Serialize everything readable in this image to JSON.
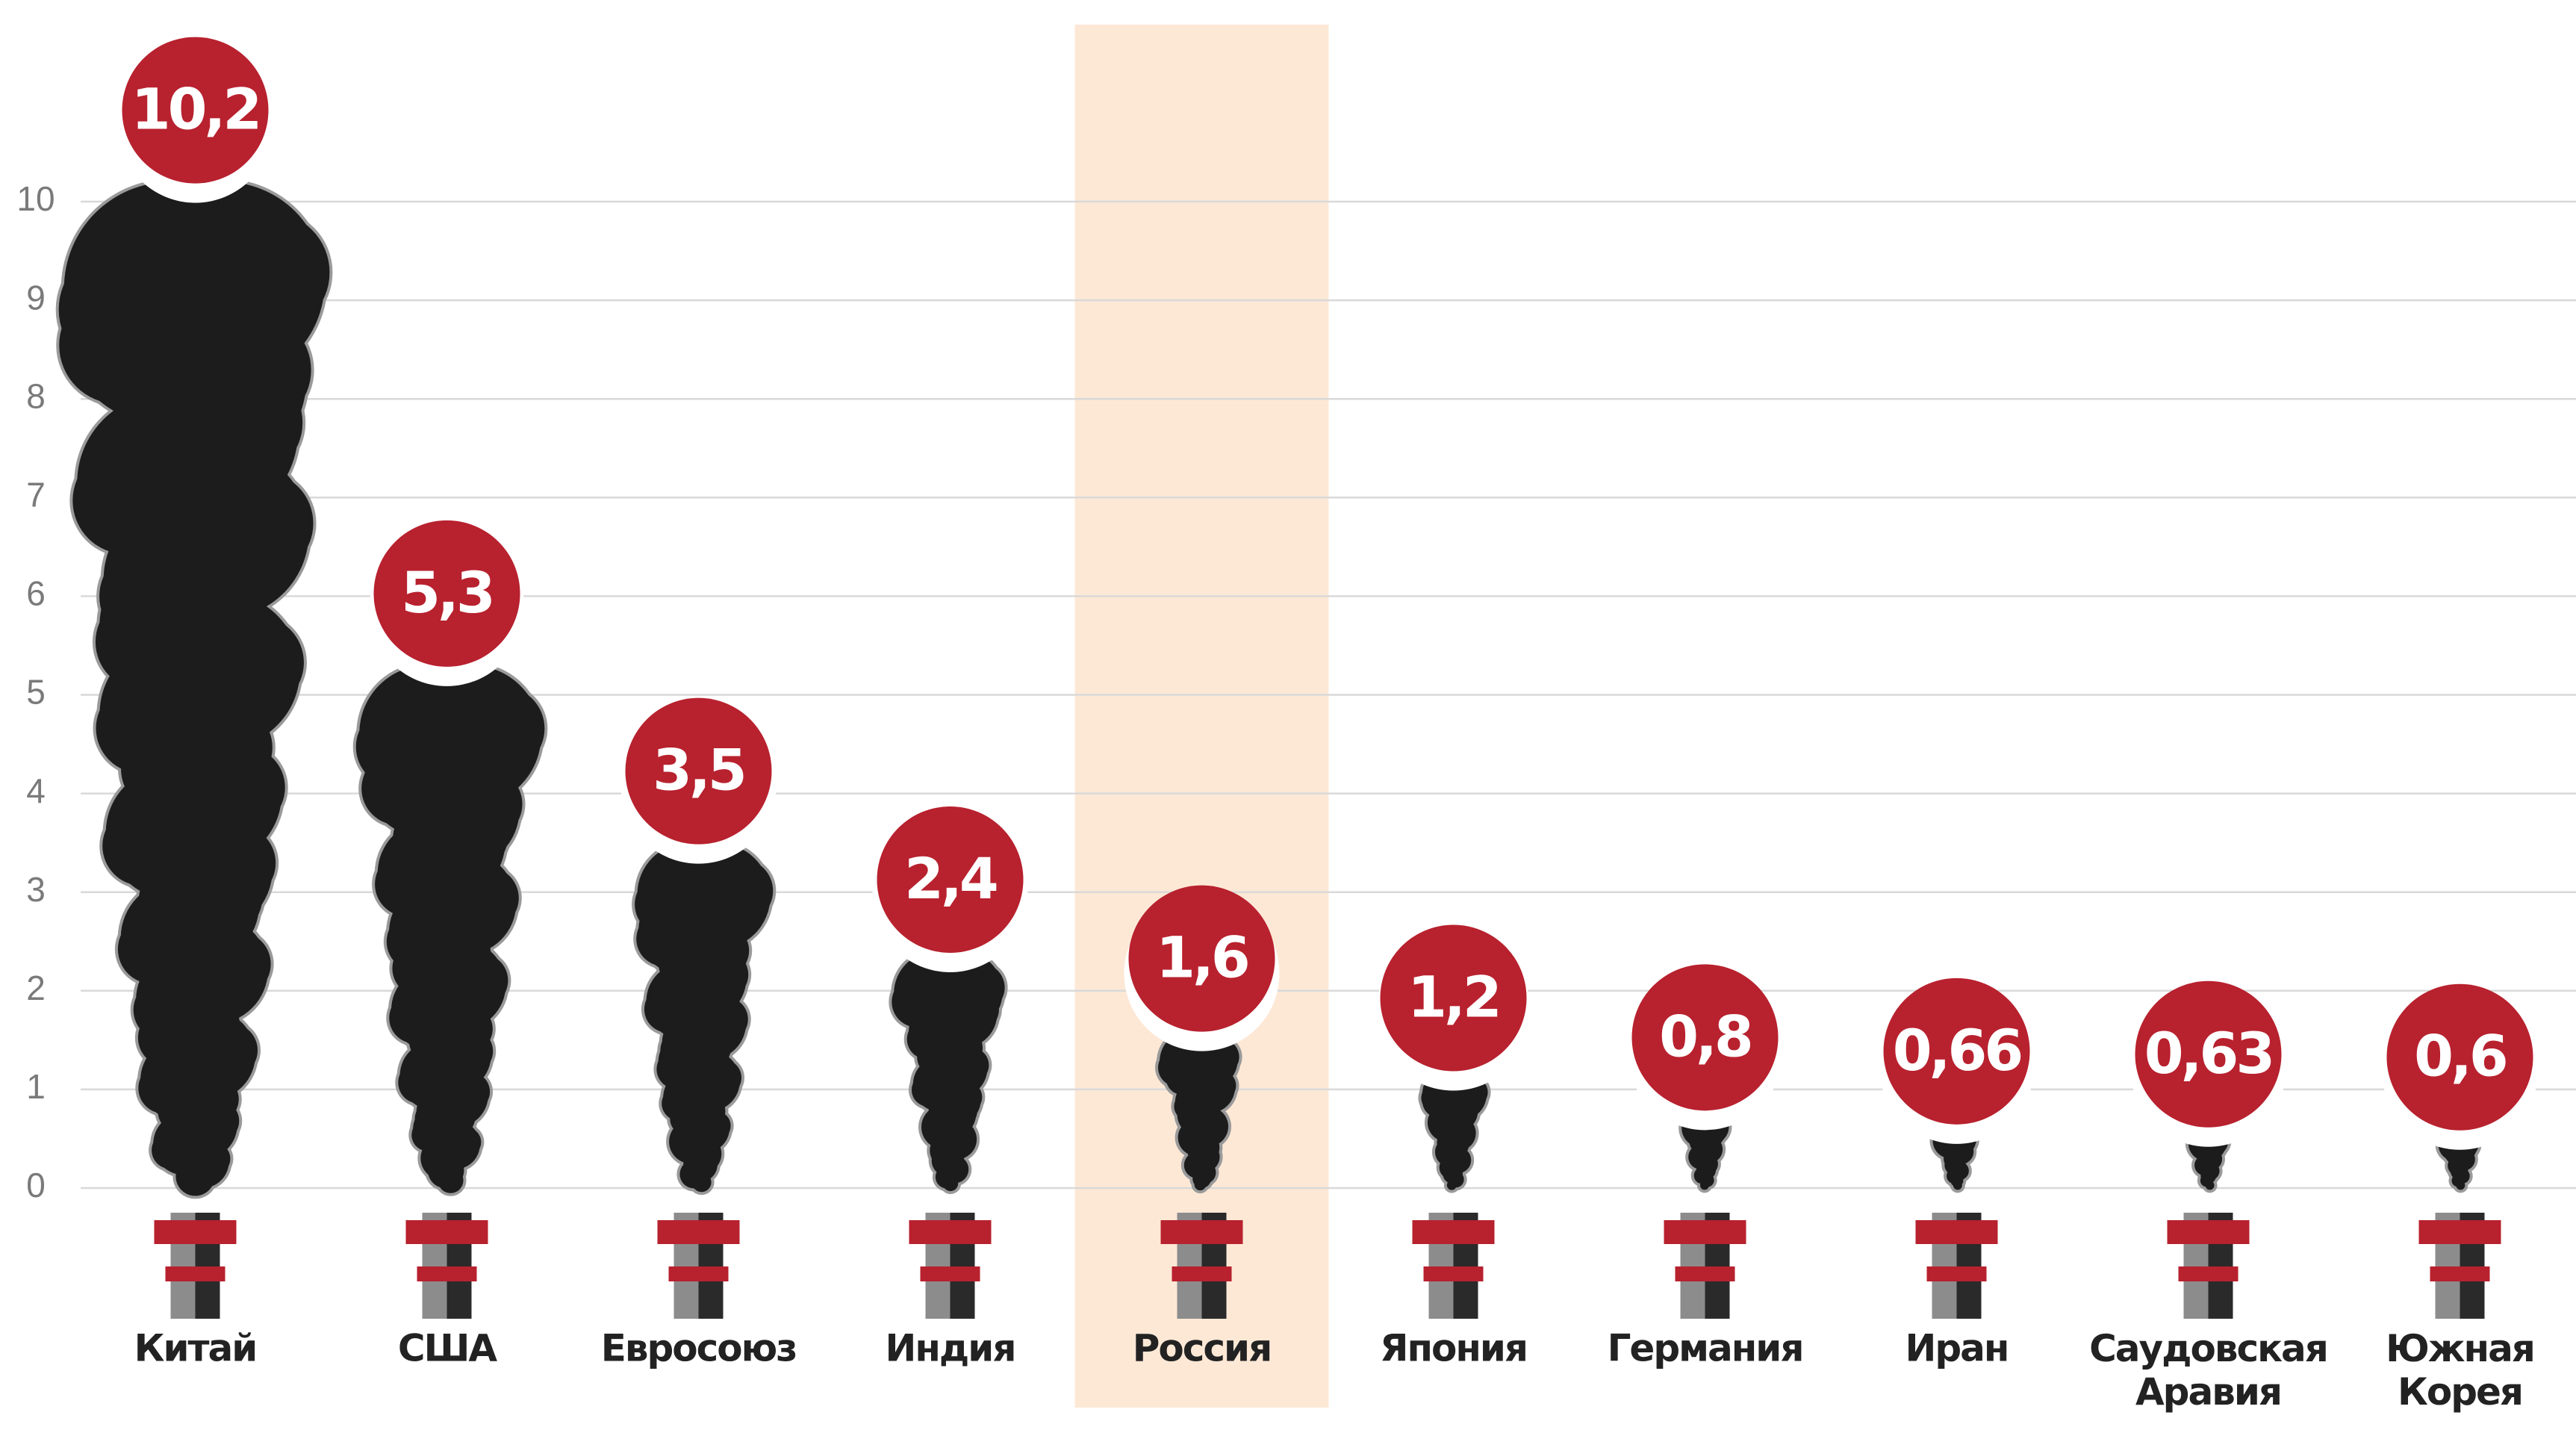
{
  "chart_data": {
    "type": "plume",
    "categories": [
      "Китай",
      "США",
      "Евросоюз",
      "Индия",
      "Россия",
      "Япония",
      "Германия",
      "Иран",
      "Саудовская Аравия",
      "Южная Корея"
    ],
    "values": [
      10.2,
      5.3,
      3.5,
      2.4,
      1.6,
      1.2,
      0.8,
      0.66,
      0.63,
      0.6
    ],
    "value_labels": [
      "10,2",
      "5,3",
      "3,5",
      "2,4",
      "1,6",
      "1,2",
      "0,8",
      "0,66",
      "0,63",
      "0,6"
    ],
    "ylim": [
      0,
      10
    ],
    "yticks": [
      0,
      1,
      2,
      3,
      4,
      5,
      6,
      7,
      8,
      9,
      10
    ],
    "grid": true,
    "color": "#1c1c1c",
    "badge_color": "#b8212e",
    "highlight": "Россия",
    "highlight_color": "#fde8d6"
  }
}
